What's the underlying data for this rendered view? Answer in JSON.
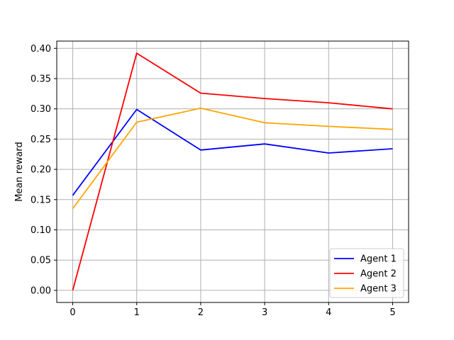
{
  "chart_data": {
    "type": "line",
    "title": "",
    "xlabel": "",
    "ylabel": "Mean reward",
    "x": [
      0,
      1,
      2,
      3,
      4,
      5
    ],
    "xlim": [
      -0.25,
      5.25
    ],
    "ylim": [
      -0.02,
      0.412
    ],
    "xticks": [
      0,
      1,
      2,
      3,
      4,
      5
    ],
    "yticks": [
      0.0,
      0.05,
      0.1,
      0.15,
      0.2,
      0.25,
      0.3,
      0.35,
      0.4
    ],
    "ytick_labels": [
      "0.00",
      "0.05",
      "0.10",
      "0.15",
      "0.20",
      "0.25",
      "0.30",
      "0.35",
      "0.40"
    ],
    "grid": true,
    "legend_position": "bottom-right",
    "series": [
      {
        "name": "Agent 1",
        "color": "#0000ff",
        "values": [
          0.157,
          0.299,
          0.232,
          0.242,
          0.227,
          0.234
        ]
      },
      {
        "name": "Agent 2",
        "color": "#ff0000",
        "values": [
          0.0,
          0.392,
          0.326,
          0.317,
          0.31,
          0.3
        ]
      },
      {
        "name": "Agent 3",
        "color": "#ffa500",
        "values": [
          0.135,
          0.278,
          0.301,
          0.277,
          0.271,
          0.266
        ]
      }
    ]
  }
}
